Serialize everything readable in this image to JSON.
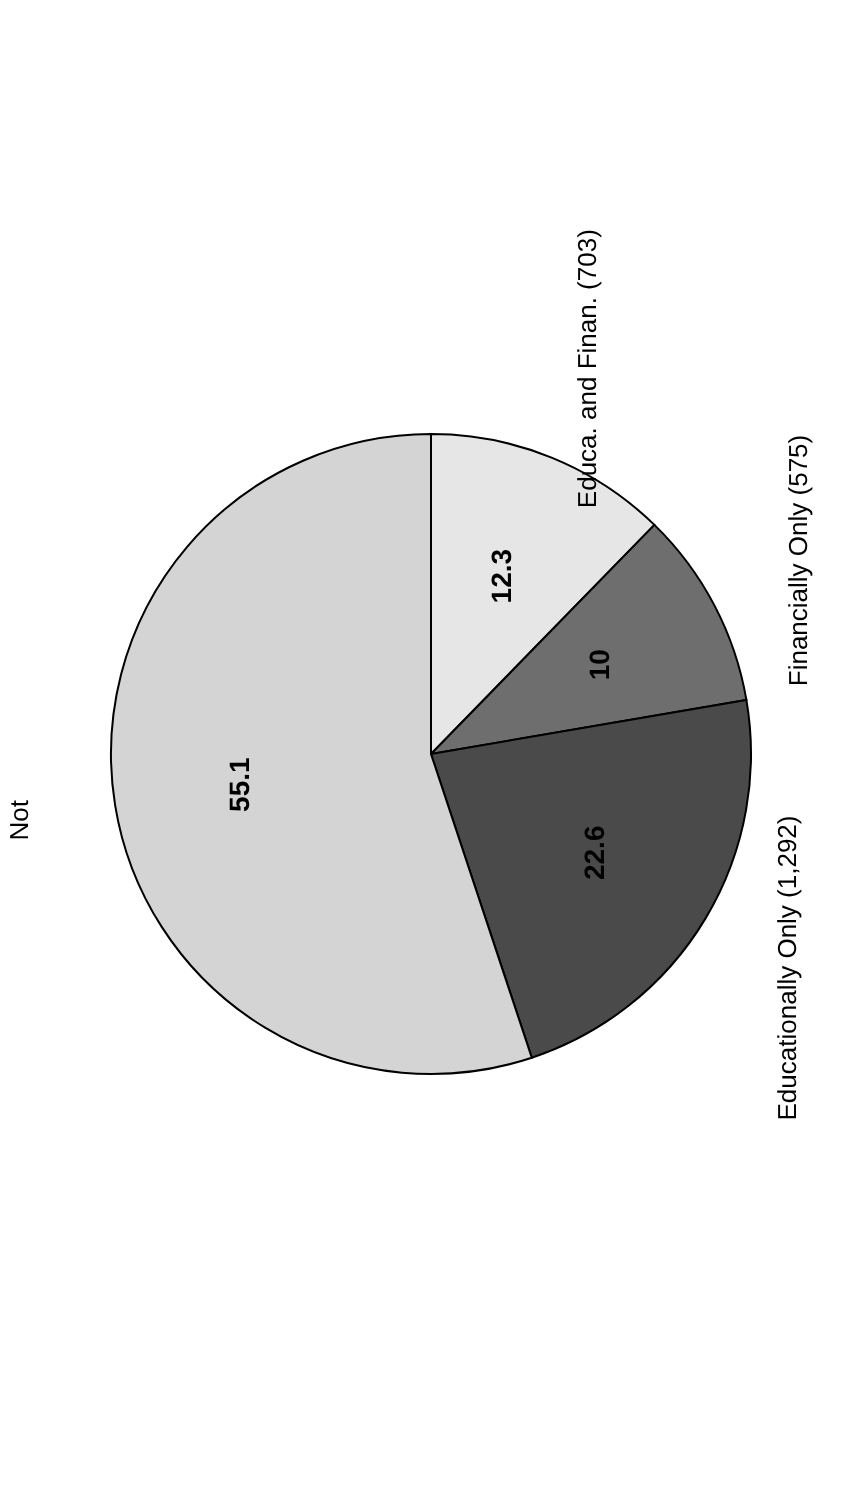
{
  "chart_data": {
    "type": "pie",
    "categories": [
      "Educa. and Finan. (703)",
      "Financially Only (575)",
      "Educationally Only (1,292)",
      "Not"
    ],
    "values": [
      12.3,
      10,
      22.6,
      55.1
    ],
    "colors": [
      "#e6e6e6",
      "#6e6e6e",
      "#4a4a4a",
      "#d4d4d4"
    ],
    "data_labels": true,
    "legend": false
  }
}
